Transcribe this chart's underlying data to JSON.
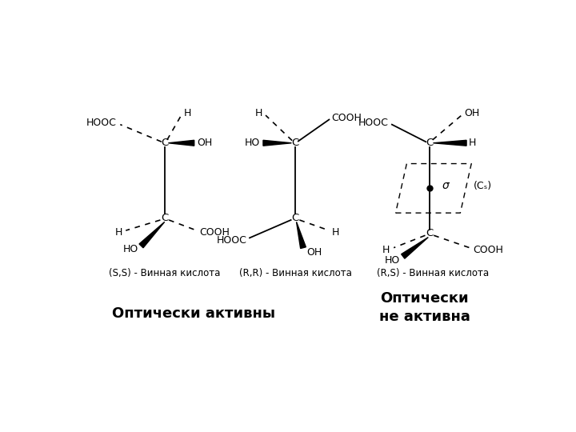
{
  "background_color": "#ffffff",
  "label_ss": "(S,S) - Винная кислота",
  "label_rr": "(R,R) - Винная кислота",
  "label_rs": "(R,S) - Винная кислота",
  "label_optically_active": "Оптически активны",
  "label_optically_inactive": "Оптически\nне активна",
  "sigma_label": "σ",
  "cs_label": "(Cₛ)"
}
